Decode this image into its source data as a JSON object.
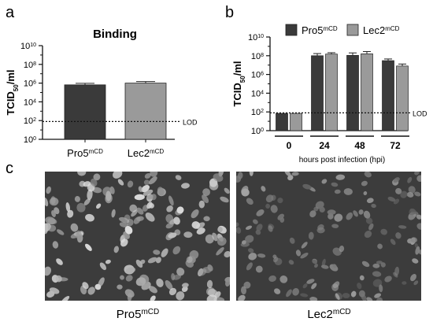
{
  "panels": {
    "a": "a",
    "b": "b",
    "c": "c"
  },
  "colors": {
    "pro5_bar": "#3a3a3a",
    "lec2_bar": "#9a9a9a",
    "micrograph_bg": "#3c3c3c",
    "cell_fill": "#cfcfcf"
  },
  "chart_data": [
    {
      "type": "bar",
      "panel": "a",
      "title": "Binding",
      "ylabel_base": "TCID",
      "ylabel_sub": "50",
      "ylabel_suffix": "/ml",
      "yscale": "log",
      "ylim": [
        1,
        10000000000
      ],
      "yticks": [
        {
          "value": 1,
          "base": "10",
          "exp": "0"
        },
        {
          "value": 100,
          "base": "10",
          "exp": "2"
        },
        {
          "value": 10000,
          "base": "10",
          "exp": "4"
        },
        {
          "value": 1000000,
          "base": "10",
          "exp": "6"
        },
        {
          "value": 100000000,
          "base": "10",
          "exp": "8"
        },
        {
          "value": 10000000000,
          "base": "10",
          "exp": "10"
        }
      ],
      "categories": [
        {
          "base": "Pro5",
          "sup": "mCD"
        },
        {
          "base": "Lec2",
          "sup": "mCD"
        }
      ],
      "values": [
        650000,
        1000000
      ],
      "errors_upper": [
        950000,
        1450000
      ],
      "lod": {
        "value": 80,
        "label": "LOD"
      }
    },
    {
      "type": "bar",
      "panel": "b",
      "ylabel_base": "TCID",
      "ylabel_sub": "50",
      "ylabel_suffix": "/ml",
      "xlabel": "hours post infection (hpi)",
      "yscale": "log",
      "ylim": [
        1,
        10000000000
      ],
      "yticks": [
        {
          "value": 1,
          "base": "10",
          "exp": "0"
        },
        {
          "value": 100,
          "base": "10",
          "exp": "2"
        },
        {
          "value": 10000,
          "base": "10",
          "exp": "4"
        },
        {
          "value": 1000000,
          "base": "10",
          "exp": "6"
        },
        {
          "value": 100000000,
          "base": "10",
          "exp": "8"
        },
        {
          "value": 10000000000,
          "base": "10",
          "exp": "10"
        }
      ],
      "categories": [
        "0",
        "24",
        "48",
        "72"
      ],
      "series": [
        {
          "name": "Pro5",
          "sup": "mCD",
          "values": [
            70,
            100000000,
            110000000,
            30000000
          ],
          "errors_upper": [
            70,
            170000000,
            200000000,
            45000000
          ]
        },
        {
          "name": "Lec2",
          "sup": "mCD",
          "values": [
            70,
            150000000,
            160000000,
            8000000
          ],
          "errors_upper": [
            70,
            210000000,
            280000000,
            13000000
          ]
        }
      ],
      "lod": {
        "value": 80,
        "label": "LOD"
      },
      "legend_position": "top"
    }
  ],
  "micrographs": [
    {
      "label_base": "Pro5",
      "label_sup": "mCD"
    },
    {
      "label_base": "Lec2",
      "label_sup": "mCD"
    }
  ]
}
